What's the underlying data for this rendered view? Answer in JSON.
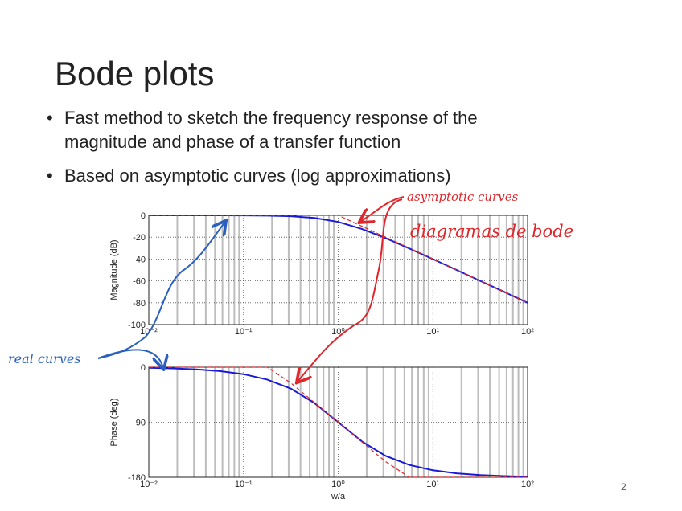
{
  "title": "Bode plots",
  "bullets": [
    "Fast method to sketch the frequency response of the magnitude and phase of a transfer function",
    "Based on asymptotic curves (log approximations)"
  ],
  "annotations": [
    "asymptotic curves",
    "diagramas de bode",
    "real curves"
  ],
  "page_number": "2",
  "chart_data": [
    {
      "type": "line",
      "ylabel": "Magnitude (dB)",
      "xlog": true,
      "grid": true,
      "x": [
        0.01,
        0.0178,
        0.0316,
        0.0562,
        0.1,
        0.178,
        0.316,
        0.562,
        1,
        1.778,
        3.162,
        5.623,
        10,
        17.78,
        31.62,
        56.23,
        100
      ],
      "xlim": [
        0.01,
        100
      ],
      "xticks": [
        {
          "value": 0.01,
          "label": "10⁻²"
        },
        {
          "value": 0.1,
          "label": "10⁻¹"
        },
        {
          "value": 1,
          "label": "10⁰"
        },
        {
          "value": 10,
          "label": "10¹"
        },
        {
          "value": 100,
          "label": "10²"
        }
      ],
      "ylim": [
        -100,
        0
      ],
      "yticks": [
        0,
        -20,
        -40,
        -60,
        -80,
        -100
      ],
      "series": [
        {
          "color": "#1a1ad6",
          "style": "solid",
          "values": [
            0,
            0,
            0,
            0,
            -0.1,
            -0.3,
            -0.8,
            -2.4,
            -6,
            -12.4,
            -20.8,
            -30.3,
            -40.1,
            -50,
            -60,
            -70,
            -80
          ]
        },
        {
          "color": "#e0262a",
          "style": "dashed",
          "values": [
            0,
            0,
            0,
            0,
            0,
            0,
            0,
            0,
            0,
            -10,
            -20,
            -30,
            -40,
            -50,
            -60,
            -70,
            -80
          ]
        }
      ]
    },
    {
      "type": "line",
      "ylabel": "Phase (deg)",
      "xlabel": "w/a",
      "xlog": true,
      "grid": true,
      "x": [
        0.01,
        0.0178,
        0.0316,
        0.0562,
        0.1,
        0.178,
        0.316,
        0.562,
        1,
        1.778,
        3.162,
        5.623,
        10,
        17.78,
        31.62,
        56.23,
        100
      ],
      "xlim": [
        0.01,
        100
      ],
      "xticks": [
        {
          "value": 0.01,
          "label": "10⁻²"
        },
        {
          "value": 0.1,
          "label": "10⁻¹"
        },
        {
          "value": 1,
          "label": "10⁰"
        },
        {
          "value": 10,
          "label": "10¹"
        },
        {
          "value": 100,
          "label": "10²"
        }
      ],
      "ylim": [
        -180,
        0
      ],
      "yticks": [
        0,
        -90,
        -180
      ],
      "series": [
        {
          "color": "#1a1ad6",
          "style": "solid",
          "values": [
            -1.1,
            -2,
            -3.6,
            -6.4,
            -11.4,
            -20.2,
            -35.1,
            -58.7,
            -90,
            -121.3,
            -144.9,
            -159.8,
            -168.6,
            -173.6,
            -176.4,
            -178,
            -178.9
          ]
        },
        {
          "color": "#e0262a",
          "style": "dashed",
          "values": [
            0,
            0,
            0,
            0,
            0,
            0,
            -25.7,
            -57.9,
            -90,
            -122.1,
            -154.3,
            -180,
            -180,
            -180,
            -180,
            -180,
            -180
          ]
        }
      ]
    }
  ]
}
